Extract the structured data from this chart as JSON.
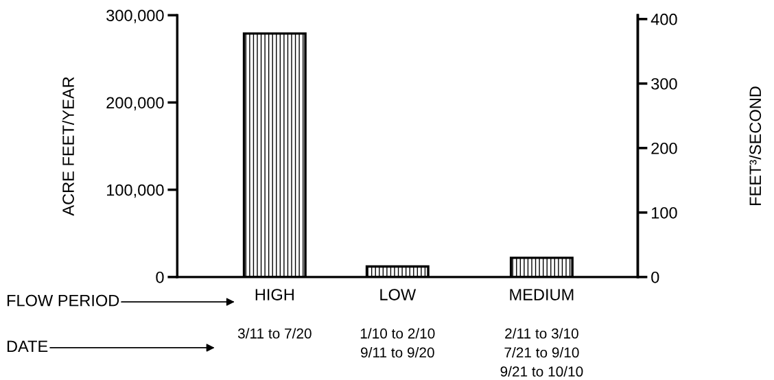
{
  "chart_data": {
    "type": "bar",
    "categories": [
      "HIGH",
      "LOW",
      "MEDIUM"
    ],
    "values": [
      279000,
      12000,
      22000
    ],
    "color": "#000000",
    "ylabel": "ACRE FEET/YEAR",
    "y2label": "FEET³/SECOND",
    "ylim": [
      0,
      300000
    ],
    "yticks": [
      0,
      {
        "value": 100000,
        "label": "100,000"
      },
      {
        "value": 200000,
        "label": "200,000"
      },
      {
        "value": 300000,
        "label": "300,000"
      }
    ],
    "y2lim": [
      0,
      406
    ],
    "y2ticks": [
      0,
      100,
      200,
      300,
      400
    ],
    "annotations": [
      "FLOW PERIOD",
      "DATE",
      "3/11 to 7/20",
      "1/10 to 2/10\n9/11 to 9/20",
      "2/11 to 3/10\n7/21 to 9/10\n9/21 to 10/10"
    ],
    "grid": false
  }
}
